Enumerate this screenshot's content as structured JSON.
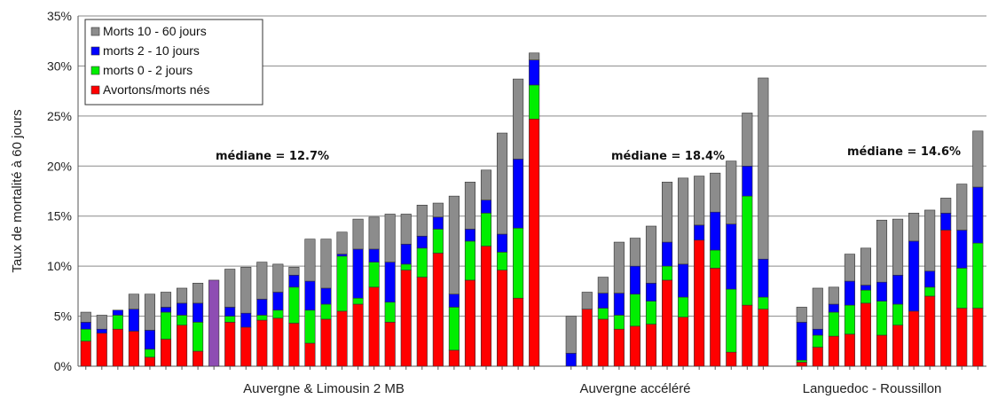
{
  "chart_data": {
    "type": "bar",
    "stacked": true,
    "ylabel": "Taux de mortalité à 60 jours",
    "ylim": [
      0,
      35
    ],
    "yticks": [
      "0%",
      "5%",
      "10%",
      "15%",
      "20%",
      "25%",
      "30%",
      "35%"
    ],
    "grid": true,
    "legend_position": "top-left",
    "series": [
      {
        "key": "avortons",
        "name": "Avortons/morts nés",
        "color": "#ff0000"
      },
      {
        "key": "m02",
        "name": "morts 0 - 2 jours",
        "color": "#00ee00"
      },
      {
        "key": "m210",
        "name": "morts 2 - 10 jours",
        "color": "#0000ff"
      },
      {
        "key": "m1060",
        "name": "Morts 10 - 60 jours",
        "color": "#8c8c8c"
      }
    ],
    "legend_order": [
      "m1060",
      "m210",
      "m02",
      "avortons"
    ],
    "groups": [
      {
        "label": "Auvergne & Limousin 2 MB",
        "median_label": "médiane = 12.7%",
        "bars": [
          [
            2.5,
            1.2,
            0.7,
            1.0
          ],
          [
            3.3,
            0.0,
            0.4,
            1.4
          ],
          [
            3.7,
            1.4,
            0.5,
            0.0
          ],
          [
            3.5,
            0.0,
            2.2,
            1.5
          ],
          [
            0.9,
            0.8,
            1.9,
            3.6
          ],
          [
            2.7,
            2.7,
            0.5,
            1.5
          ],
          [
            4.1,
            1.0,
            1.2,
            1.5
          ],
          [
            1.5,
            2.9,
            1.9,
            2.0
          ],
          [
            8.6,
            0.0,
            0.0,
            0.0,
            "#8e4db3"
          ],
          [
            4.4,
            0.6,
            0.9,
            3.8
          ],
          [
            3.9,
            0.0,
            1.4,
            4.6
          ],
          [
            4.6,
            0.5,
            1.6,
            3.7
          ],
          [
            4.8,
            0.8,
            1.8,
            2.8
          ],
          [
            4.3,
            3.6,
            1.2,
            0.8
          ],
          [
            2.3,
            3.3,
            2.9,
            4.2
          ],
          [
            4.7,
            1.5,
            1.6,
            4.9
          ],
          [
            5.5,
            5.5,
            0.2,
            2.2
          ],
          [
            6.2,
            0.6,
            4.9,
            3.0
          ],
          [
            7.9,
            2.5,
            1.3,
            3.2
          ],
          [
            4.4,
            2.0,
            4.0,
            4.8
          ],
          [
            9.6,
            0.6,
            2.0,
            3.0
          ],
          [
            8.9,
            2.9,
            1.2,
            3.1
          ],
          [
            11.3,
            2.4,
            1.2,
            1.4
          ],
          [
            1.6,
            4.3,
            1.3,
            9.8
          ],
          [
            8.6,
            3.9,
            1.2,
            4.7
          ],
          [
            12.0,
            3.3,
            1.3,
            3.0
          ],
          [
            9.6,
            1.8,
            1.8,
            10.1
          ],
          [
            6.8,
            7.0,
            6.9,
            8.0
          ],
          [
            24.7,
            3.4,
            2.5,
            0.7
          ]
        ]
      },
      {
        "label": "Auvergne accéléré",
        "median_label": "médiane = 18.4%",
        "bars": [
          [
            0.0,
            0.0,
            1.3,
            3.7
          ],
          [
            5.7,
            0.0,
            0.0,
            1.7
          ],
          [
            4.7,
            1.1,
            1.5,
            1.6
          ],
          [
            3.7,
            1.4,
            2.2,
            5.1
          ],
          [
            4.0,
            3.2,
            2.8,
            2.8
          ],
          [
            4.2,
            2.3,
            1.8,
            5.7
          ],
          [
            8.6,
            1.4,
            2.4,
            6.0
          ],
          [
            4.9,
            2.0,
            3.3,
            8.6
          ],
          [
            12.6,
            0.0,
            1.5,
            4.9
          ],
          [
            9.8,
            1.8,
            3.8,
            3.9
          ],
          [
            1.4,
            6.3,
            6.5,
            6.3
          ],
          [
            6.1,
            10.9,
            3.0,
            5.3
          ],
          [
            5.7,
            1.2,
            3.8,
            18.1
          ]
        ]
      },
      {
        "label": "Languedoc - Roussillon",
        "median_label": "médiane = 14.6%",
        "bars": [
          [
            0.4,
            0.2,
            3.8,
            1.5
          ],
          [
            1.9,
            1.2,
            0.6,
            4.1
          ],
          [
            3.0,
            2.4,
            0.8,
            1.7
          ],
          [
            3.2,
            2.9,
            2.4,
            2.7
          ],
          [
            6.3,
            1.3,
            0.5,
            3.7
          ],
          [
            3.1,
            3.4,
            1.9,
            6.2
          ],
          [
            4.1,
            2.1,
            2.9,
            5.6
          ],
          [
            5.5,
            0.0,
            7.0,
            2.8
          ],
          [
            7.0,
            0.9,
            1.6,
            6.1
          ],
          [
            13.6,
            0.0,
            1.7,
            1.5
          ],
          [
            5.8,
            4.0,
            3.8,
            4.6
          ],
          [
            5.8,
            6.5,
            5.6,
            5.6
          ]
        ]
      }
    ]
  }
}
